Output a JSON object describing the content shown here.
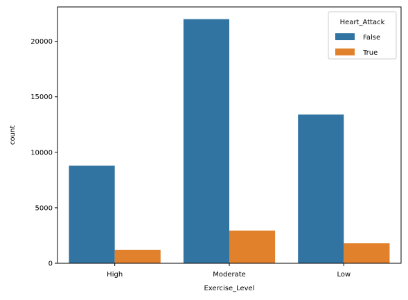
{
  "chart_data": {
    "type": "bar",
    "title": "",
    "xlabel": "Exercise_Level",
    "ylabel": "count",
    "categories": [
      "High",
      "Moderate",
      "Low"
    ],
    "series": [
      {
        "name": "False",
        "color": "#3274a1",
        "values": [
          8800,
          22000,
          13400
        ]
      },
      {
        "name": "True",
        "color": "#e1812c",
        "values": [
          1200,
          2950,
          1800
        ]
      }
    ],
    "ylim": [
      0,
      23100
    ],
    "yticks": [
      0,
      5000,
      10000,
      15000,
      20000
    ],
    "ytick_labels": [
      "0",
      "5000",
      "10000",
      "15000",
      "20000"
    ],
    "grid": false,
    "legend": {
      "title": "Heart_Attack",
      "placement": "top-right"
    }
  }
}
